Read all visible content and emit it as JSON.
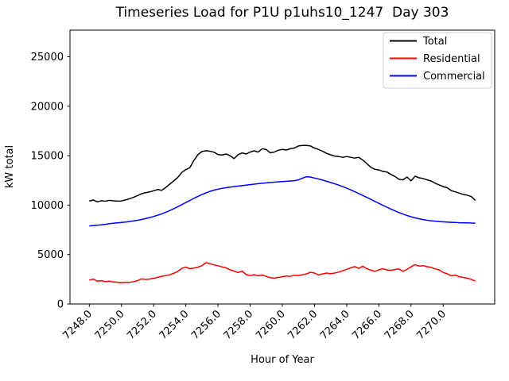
{
  "title": "Timeseries Load for P1U p1uhs10_1247  Day 303",
  "colors": {
    "total": "#000000",
    "residential": "#ff0000",
    "commercial": "#0000ff",
    "spine": "#000000",
    "legend_border": "#cccccc",
    "background": "#ffffff"
  },
  "chart_data": {
    "type": "line",
    "title": "Timeseries Load for P1U p1uhs10_1247  Day 303",
    "xlabel": "Hour of Year",
    "ylabel": "kW total",
    "xlim": [
      7246.8,
      7273.2
    ],
    "ylim": [
      0,
      27690
    ],
    "grid": false,
    "legend_position": "upper right",
    "xticks": [
      7248,
      7250,
      7252,
      7254,
      7256,
      7258,
      7260,
      7262,
      7264,
      7266,
      7268,
      7270
    ],
    "xtick_labels": [
      "7248.0",
      "7250.0",
      "7252.0",
      "7254.0",
      "7256.0",
      "7258.0",
      "7260.0",
      "7262.0",
      "7264.0",
      "7266.0",
      "7268.0",
      "7270.0"
    ],
    "yticks": [
      0,
      5000,
      10000,
      15000,
      20000,
      25000
    ],
    "ytick_labels": [
      "0",
      "5000",
      "10000",
      "15000",
      "20000",
      "25000"
    ],
    "x_start": 7248.0,
    "x_step": 0.25,
    "series": [
      {
        "name": "Total",
        "color": "#000000",
        "values": [
          10400,
          10520,
          10330,
          10440,
          10390,
          10480,
          10430,
          10400,
          10420,
          10520,
          10640,
          10790,
          10960,
          11150,
          11260,
          11330,
          11450,
          11570,
          11500,
          11780,
          12120,
          12450,
          12800,
          13300,
          13600,
          13780,
          14500,
          15100,
          15420,
          15500,
          15450,
          15350,
          15120,
          15060,
          15170,
          15000,
          14700,
          15100,
          15280,
          15170,
          15360,
          15490,
          15360,
          15700,
          15620,
          15290,
          15370,
          15550,
          15630,
          15570,
          15700,
          15770,
          15980,
          16030,
          16030,
          15980,
          15760,
          15630,
          15440,
          15230,
          15090,
          14960,
          14910,
          14830,
          14910,
          14830,
          14750,
          14830,
          14560,
          14200,
          13820,
          13620,
          13560,
          13410,
          13350,
          13110,
          12900,
          12610,
          12550,
          12840,
          12460,
          12920,
          12760,
          12690,
          12550,
          12440,
          12210,
          12050,
          11870,
          11760,
          11460,
          11340,
          11210,
          11080,
          11000,
          10860,
          10480
        ]
      },
      {
        "name": "Residential",
        "color": "#ff0000",
        "values": [
          2420,
          2520,
          2300,
          2360,
          2270,
          2310,
          2240,
          2200,
          2160,
          2210,
          2180,
          2260,
          2360,
          2550,
          2480,
          2530,
          2600,
          2700,
          2800,
          2870,
          2950,
          3110,
          3300,
          3600,
          3740,
          3570,
          3630,
          3730,
          3870,
          4180,
          4080,
          3960,
          3870,
          3760,
          3660,
          3460,
          3330,
          3180,
          3340,
          2980,
          2870,
          2960,
          2850,
          2930,
          2790,
          2660,
          2620,
          2690,
          2760,
          2840,
          2790,
          2910,
          2870,
          2960,
          3040,
          3210,
          3130,
          2940,
          3050,
          3130,
          3060,
          3130,
          3230,
          3360,
          3510,
          3660,
          3780,
          3610,
          3820,
          3570,
          3430,
          3300,
          3460,
          3560,
          3450,
          3400,
          3490,
          3550,
          3310,
          3510,
          3760,
          3980,
          3830,
          3880,
          3770,
          3710,
          3550,
          3450,
          3190,
          3060,
          2860,
          2910,
          2770,
          2690,
          2610,
          2490,
          2310
        ]
      },
      {
        "name": "Commercial",
        "color": "#0000ff",
        "values": [
          7900,
          7930,
          7960,
          8000,
          8060,
          8120,
          8170,
          8210,
          8250,
          8290,
          8340,
          8400,
          8470,
          8550,
          8640,
          8740,
          8850,
          8980,
          9120,
          9280,
          9450,
          9640,
          9840,
          10050,
          10260,
          10470,
          10680,
          10880,
          11070,
          11240,
          11390,
          11510,
          11610,
          11690,
          11760,
          11820,
          11870,
          11920,
          11970,
          12020,
          12070,
          12120,
          12170,
          12210,
          12250,
          12290,
          12320,
          12350,
          12380,
          12410,
          12440,
          12470,
          12550,
          12720,
          12870,
          12830,
          12740,
          12640,
          12530,
          12410,
          12290,
          12160,
          12020,
          11870,
          11710,
          11540,
          11360,
          11170,
          10980,
          10780,
          10580,
          10380,
          10180,
          9980,
          9790,
          9600,
          9420,
          9250,
          9090,
          8950,
          8820,
          8710,
          8620,
          8540,
          8470,
          8420,
          8380,
          8340,
          8310,
          8280,
          8260,
          8240,
          8220,
          8210,
          8200,
          8190,
          8180
        ]
      }
    ]
  }
}
